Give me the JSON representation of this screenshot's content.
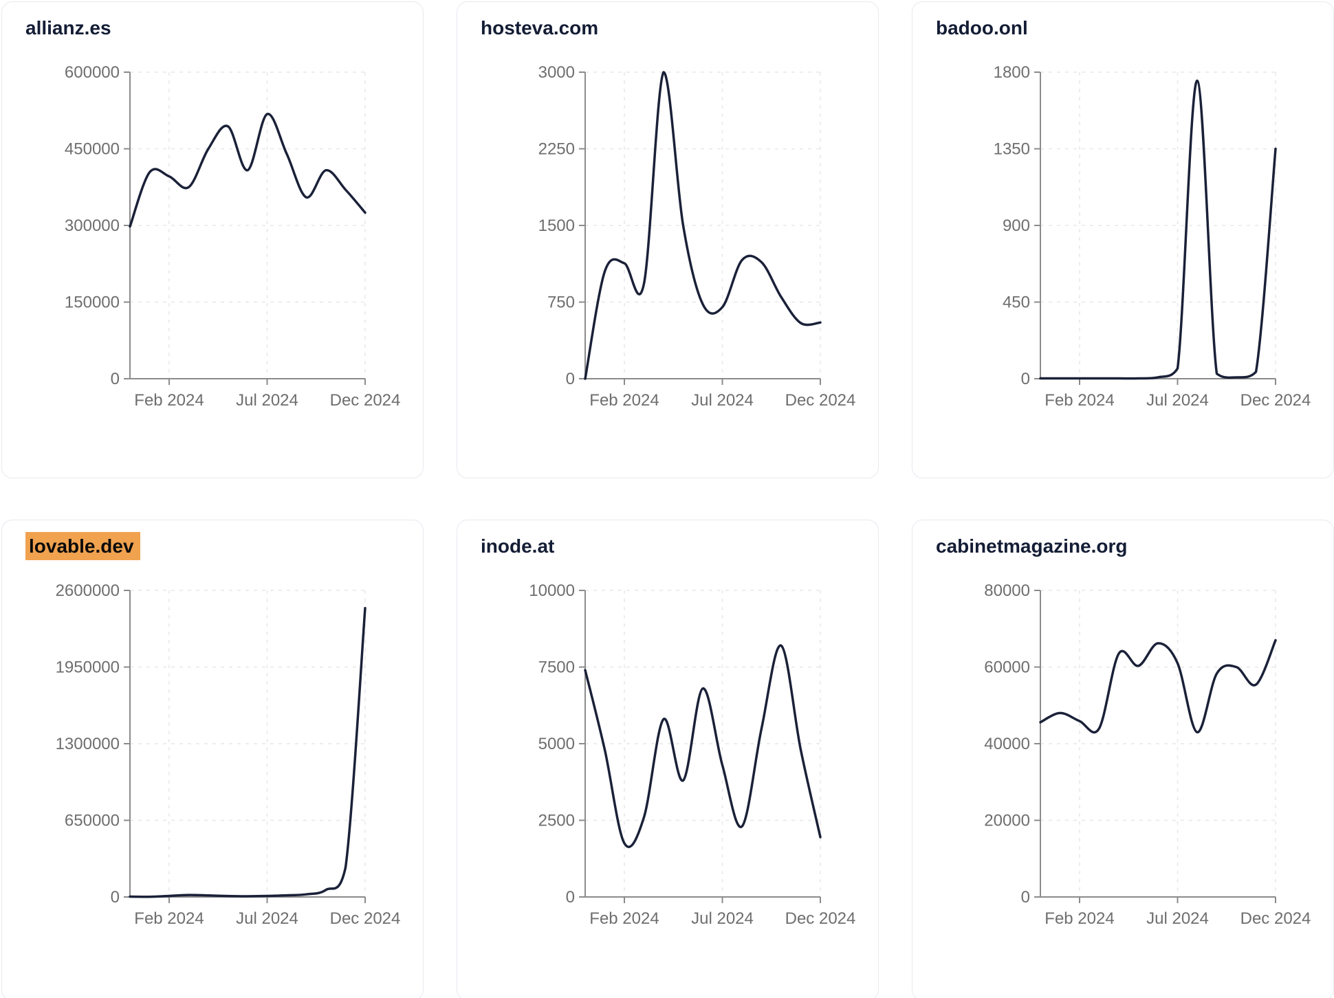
{
  "style": {
    "page_bg": "#ffffff",
    "card_bg": "#ffffff",
    "card_border": "#e6e9ef",
    "title_color": "#141d35",
    "line_color": "#1a2138",
    "axis_color": "#8b8b8b",
    "tick_label_color": "#6e6e6e",
    "grid_color": "#e7e7e7",
    "highlight_bg": "#f0a24f",
    "highlight_text": "#0b0b0b"
  },
  "x_months": [
    "Dec 2023",
    "Jan 2024",
    "Feb 2024",
    "Mar 2024",
    "Apr 2024",
    "May 2024",
    "Jun 2024",
    "Jul 2024",
    "Aug 2024",
    "Sep 2024",
    "Oct 2024",
    "Nov 2024",
    "Dec 2024"
  ],
  "x_tick_labels": [
    "Feb 2024",
    "Jul 2024",
    "Dec 2024"
  ],
  "x_tick_indices": [
    2,
    7,
    12
  ],
  "chart_data": [
    {
      "type": "line",
      "title": "allianz.es",
      "highlighted": false,
      "ylim": [
        0,
        600000
      ],
      "y_ticks": [
        0,
        150000,
        300000,
        450000,
        600000
      ],
      "x": [
        "Dec 2023",
        "Jan 2024",
        "Feb 2024",
        "Mar 2024",
        "Apr 2024",
        "May 2024",
        "Jun 2024",
        "Jul 2024",
        "Aug 2024",
        "Sep 2024",
        "Oct 2024",
        "Nov 2024",
        "Dec 2024"
      ],
      "values": [
        298000,
        404000,
        396000,
        375000,
        450000,
        494000,
        408000,
        518000,
        440000,
        355000,
        408000,
        370000,
        325000
      ]
    },
    {
      "type": "line",
      "title": "hosteva.com",
      "highlighted": false,
      "ylim": [
        0,
        3000
      ],
      "y_ticks": [
        0,
        750,
        1500,
        2250,
        3000
      ],
      "x": [
        "Dec 2023",
        "Jan 2024",
        "Feb 2024",
        "Mar 2024",
        "Apr 2024",
        "May 2024",
        "Jun 2024",
        "Jul 2024",
        "Aug 2024",
        "Sep 2024",
        "Oct 2024",
        "Nov 2024",
        "Dec 2024"
      ],
      "values": [
        0,
        1050,
        1130,
        930,
        3000,
        1500,
        730,
        700,
        1160,
        1140,
        800,
        545,
        550
      ]
    },
    {
      "type": "line",
      "title": "badoo.onl",
      "highlighted": false,
      "ylim": [
        0,
        1800
      ],
      "y_ticks": [
        0,
        450,
        900,
        1350,
        1800
      ],
      "x": [
        "Dec 2023",
        "Jan 2024",
        "Feb 2024",
        "Mar 2024",
        "Apr 2024",
        "May 2024",
        "Jun 2024",
        "Jul 2024",
        "Aug 2024",
        "Sep 2024",
        "Oct 2024",
        "Nov 2024",
        "Dec 2024"
      ],
      "values": [
        2,
        2,
        2,
        2,
        2,
        2,
        8,
        60,
        1750,
        30,
        8,
        40,
        1350
      ]
    },
    {
      "type": "line",
      "title": "lovable.dev",
      "highlighted": true,
      "ylim": [
        0,
        2600000
      ],
      "y_ticks": [
        0,
        650000,
        1300000,
        1950000,
        2600000
      ],
      "x": [
        "Dec 2023",
        "Jan 2024",
        "Feb 2024",
        "Mar 2024",
        "Apr 2024",
        "May 2024",
        "Jun 2024",
        "Jul 2024",
        "Aug 2024",
        "Sep 2024",
        "Oct 2024",
        "Nov 2024",
        "Dec 2024"
      ],
      "values": [
        3000,
        2000,
        9000,
        17000,
        13000,
        8000,
        6000,
        9000,
        14000,
        22000,
        60000,
        250000,
        2450000
      ]
    },
    {
      "type": "line",
      "title": "inode.at",
      "highlighted": false,
      "ylim": [
        0,
        10000
      ],
      "y_ticks": [
        0,
        2500,
        5000,
        7500,
        10000
      ],
      "x": [
        "Dec 2023",
        "Jan 2024",
        "Feb 2024",
        "Mar 2024",
        "Apr 2024",
        "May 2024",
        "Jun 2024",
        "Jul 2024",
        "Aug 2024",
        "Sep 2024",
        "Oct 2024",
        "Nov 2024",
        "Dec 2024"
      ],
      "values": [
        7400,
        4800,
        1750,
        2600,
        5800,
        3800,
        6800,
        4300,
        2300,
        5500,
        8200,
        4800,
        1950
      ]
    },
    {
      "type": "line",
      "title": "cabinetmagazine.org",
      "highlighted": false,
      "ylim": [
        0,
        80000
      ],
      "y_ticks": [
        0,
        20000,
        40000,
        60000,
        80000
      ],
      "x": [
        "Dec 2023",
        "Jan 2024",
        "Feb 2024",
        "Mar 2024",
        "Apr 2024",
        "May 2024",
        "Jun 2024",
        "Jul 2024",
        "Aug 2024",
        "Sep 2024",
        "Oct 2024",
        "Nov 2024",
        "Dec 2024"
      ],
      "values": [
        45600,
        48000,
        45900,
        44000,
        63500,
        60300,
        66200,
        61000,
        43000,
        58300,
        60000,
        55400,
        67000
      ]
    }
  ]
}
